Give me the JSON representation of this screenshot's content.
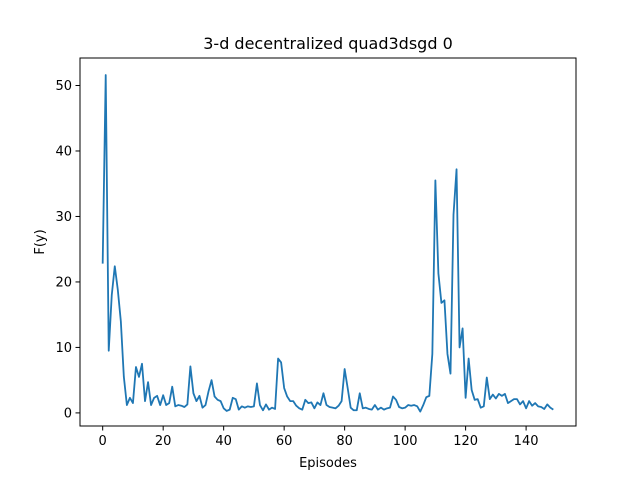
{
  "chart_data": {
    "type": "line",
    "title": "3-d decentralized quad3dsgd 0",
    "xlabel": "Episodes",
    "ylabel": "F(y)",
    "xlim": [
      -7.5,
      156.5
    ],
    "ylim": [
      -2.0,
      54.2
    ],
    "xticks": [
      0,
      20,
      40,
      60,
      80,
      100,
      120,
      140
    ],
    "yticks": [
      0,
      10,
      20,
      30,
      40,
      50
    ],
    "grid": false,
    "legend": "none",
    "series": [
      {
        "color": "#1f77b4",
        "x": [
          0,
          1,
          2,
          3,
          4,
          5,
          6,
          7,
          8,
          9,
          10,
          11,
          12,
          13,
          14,
          15,
          16,
          17,
          18,
          19,
          20,
          21,
          22,
          23,
          24,
          25,
          26,
          27,
          28,
          29,
          30,
          31,
          32,
          33,
          34,
          35,
          36,
          37,
          38,
          39,
          40,
          41,
          42,
          43,
          44,
          45,
          46,
          47,
          48,
          49,
          50,
          51,
          52,
          53,
          54,
          55,
          56,
          57,
          58,
          59,
          60,
          61,
          62,
          63,
          64,
          65,
          66,
          67,
          68,
          69,
          70,
          71,
          72,
          73,
          74,
          75,
          76,
          77,
          78,
          79,
          80,
          81,
          82,
          83,
          84,
          85,
          86,
          87,
          88,
          89,
          90,
          91,
          92,
          93,
          94,
          95,
          96,
          97,
          98,
          99,
          100,
          101,
          102,
          103,
          104,
          105,
          106,
          107,
          108,
          109,
          110,
          111,
          112,
          113,
          114,
          115,
          116,
          117,
          118,
          119,
          120,
          121,
          122,
          123,
          124,
          125,
          126,
          127,
          128,
          129,
          130,
          131,
          132,
          133,
          134,
          135,
          136,
          137,
          138,
          139,
          140,
          141,
          142,
          143,
          144,
          145,
          146,
          147,
          148,
          149
        ],
        "y": [
          22.8,
          51.6,
          9.5,
          18.0,
          22.4,
          18.8,
          14.0,
          5.5,
          1.2,
          2.3,
          1.5,
          7.0,
          5.5,
          7.5,
          1.8,
          4.7,
          1.2,
          2.3,
          2.6,
          1.2,
          2.7,
          1.2,
          1.5,
          4.0,
          1.0,
          1.2,
          1.1,
          0.9,
          1.3,
          7.1,
          3.0,
          1.8,
          2.6,
          0.8,
          1.2,
          3.3,
          5.0,
          2.5,
          2.0,
          1.8,
          0.7,
          0.3,
          0.5,
          2.3,
          2.1,
          0.5,
          1.0,
          0.8,
          1.0,
          0.9,
          1.0,
          4.5,
          1.2,
          0.4,
          1.3,
          0.5,
          0.8,
          0.6,
          8.3,
          7.7,
          3.8,
          2.5,
          1.8,
          1.8,
          1.1,
          0.7,
          0.5,
          2.0,
          1.5,
          1.6,
          0.7,
          1.6,
          1.2,
          3.0,
          1.2,
          0.9,
          0.8,
          0.7,
          1.1,
          1.8,
          6.7,
          3.8,
          0.8,
          0.4,
          0.4,
          3.0,
          0.7,
          0.8,
          0.6,
          0.5,
          1.2,
          0.5,
          0.8,
          0.5,
          0.7,
          0.8,
          2.5,
          2.0,
          0.9,
          0.7,
          0.8,
          1.2,
          1.1,
          1.2,
          1.0,
          0.2,
          1.2,
          2.4,
          2.6,
          9.0,
          35.5,
          21.3,
          16.8,
          17.2,
          9.0,
          6.0,
          30.3,
          37.2,
          10.0,
          12.9,
          2.3,
          8.3,
          3.5,
          2.0,
          2.1,
          0.8,
          1.0,
          5.4,
          2.1,
          2.8,
          2.2,
          2.9,
          2.6,
          2.9,
          1.5,
          1.8,
          2.1,
          2.1,
          1.3,
          1.8,
          0.7,
          1.8,
          1.1,
          1.5,
          1.0,
          0.9,
          0.6,
          1.3,
          0.8,
          0.5
        ]
      }
    ]
  }
}
